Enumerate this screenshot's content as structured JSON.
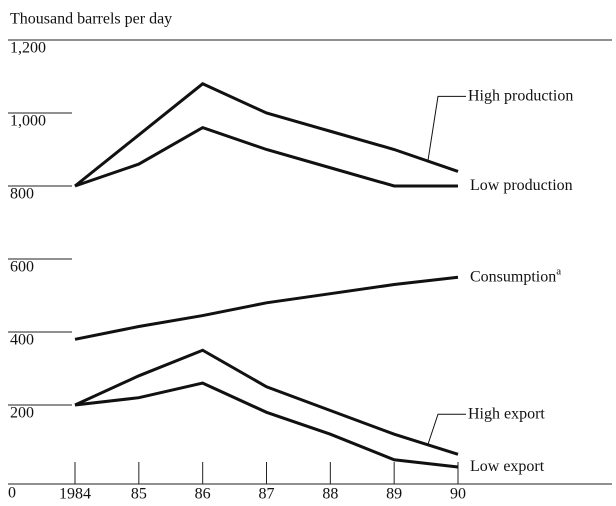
{
  "chart_data": {
    "type": "line",
    "y_axis_label": "Thousand barrels per day",
    "categories": [
      "1984",
      "85",
      "86",
      "87",
      "88",
      "89",
      "90"
    ],
    "series": [
      {
        "name": "High production",
        "color": "#111",
        "values": [
          800,
          940,
          1080,
          1000,
          950,
          900,
          840
        ]
      },
      {
        "name": "Low production",
        "color": "#111",
        "values": [
          800,
          860,
          960,
          900,
          850,
          800,
          800
        ]
      },
      {
        "name": "Consumption",
        "note": "a",
        "color": "#111",
        "values": [
          380,
          415,
          445,
          480,
          505,
          530,
          550
        ]
      },
      {
        "name": "High export",
        "color": "#111",
        "values": [
          200,
          280,
          350,
          250,
          185,
          120,
          65
        ]
      },
      {
        "name": "Low export",
        "color": "#111",
        "values": [
          200,
          220,
          260,
          180,
          120,
          50,
          30
        ]
      }
    ],
    "ylim": [
      0,
      1200
    ],
    "yticks": [
      0,
      200,
      400,
      600,
      800,
      {
        "value": 1000,
        "label": "1,000"
      },
      {
        "value": 1200,
        "label": "1,200"
      }
    ],
    "grid": true
  }
}
